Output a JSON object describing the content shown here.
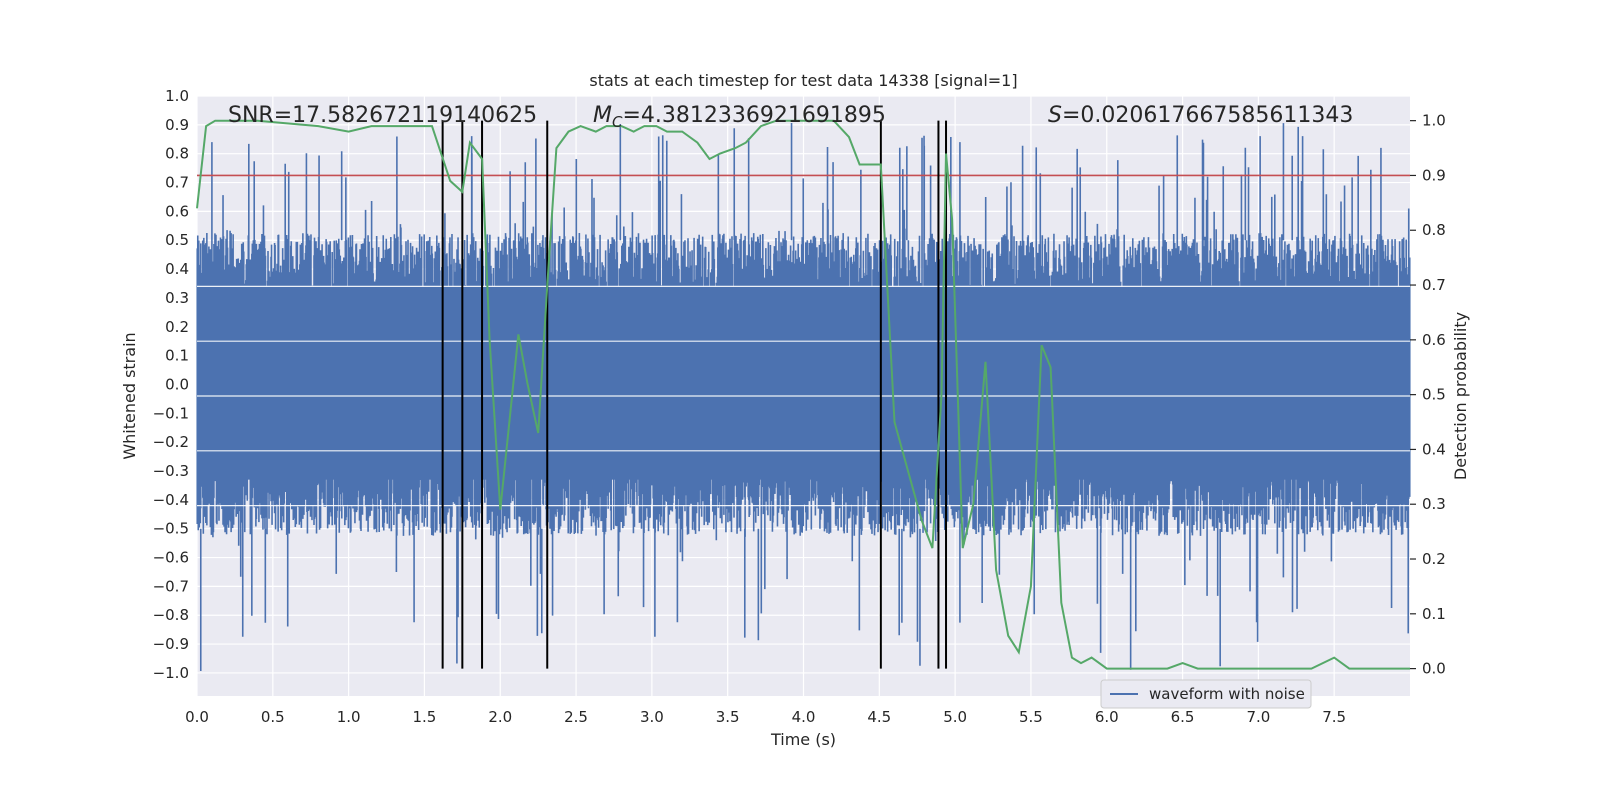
{
  "chart_data": {
    "type": "line",
    "title": "stats at each timestep for test data 14338 [signal=1]",
    "xlabel": "Time (s)",
    "ylabel_left": "Whitened strain",
    "ylabel_right": "Detection probability",
    "xlim": [
      0.0,
      8.0
    ],
    "ylim_left": [
      -1.08,
      1.0
    ],
    "ylim_right": [
      -0.05,
      1.045
    ],
    "xticks": [
      "0.0",
      "0.5",
      "1.0",
      "1.5",
      "2.0",
      "2.5",
      "3.0",
      "3.5",
      "4.0",
      "4.5",
      "5.0",
      "5.5",
      "6.0",
      "6.5",
      "7.0",
      "7.5"
    ],
    "yticks_left": [
      "1.0",
      "0.9",
      "0.8",
      "0.7",
      "0.6",
      "0.5",
      "0.4",
      "0.3",
      "0.2",
      "0.1",
      "0.0",
      "−0.1",
      "−0.2",
      "−0.3",
      "−0.4",
      "−0.5",
      "−0.6",
      "−0.7",
      "−0.8",
      "−0.9",
      "−1.0"
    ],
    "yticks_right": [
      "1.0",
      "0.9",
      "0.8",
      "0.7",
      "0.6",
      "0.5",
      "0.4",
      "0.3",
      "0.2",
      "0.1",
      "0.0"
    ],
    "annotations": {
      "snr": "SNR=17.582672119140625",
      "mc_symbol": "M",
      "mc_sub": "C",
      "mc_value": "=4.3812336921691895",
      "s_symbol": "S",
      "s_value": "=0.020617667585611343"
    },
    "legend": {
      "label": "waveform with noise",
      "placement": "lower-right"
    },
    "threshold": 0.9,
    "event_lines": [
      1.62,
      1.75,
      1.88,
      2.31,
      4.51,
      4.89,
      4.94
    ],
    "series": [
      {
        "name": "waveform with noise",
        "axis": "left",
        "style": "noise-band",
        "core_range": [
          -0.5,
          0.5
        ],
        "peak_max": 0.91,
        "trough_min": -1.0
      },
      {
        "name": "detection probability",
        "axis": "right",
        "x": [
          0.0,
          0.06,
          0.12,
          0.4,
          0.8,
          1.0,
          1.15,
          1.3,
          1.45,
          1.55,
          1.67,
          1.75,
          1.8,
          1.88,
          1.93,
          2.0,
          2.12,
          2.18,
          2.25,
          2.31,
          2.37,
          2.45,
          2.53,
          2.63,
          2.7,
          2.8,
          2.88,
          2.95,
          3.03,
          3.1,
          3.2,
          3.3,
          3.38,
          3.45,
          3.55,
          3.62,
          3.72,
          3.82,
          3.95,
          4.05,
          4.2,
          4.3,
          4.37,
          4.45,
          4.51,
          4.6,
          4.68,
          4.78,
          4.85,
          4.91,
          4.94,
          4.98,
          5.05,
          5.12,
          5.2,
          5.27,
          5.35,
          5.42,
          5.5,
          5.57,
          5.63,
          5.7,
          5.77,
          5.83,
          5.9,
          6.0,
          6.2,
          6.4,
          6.5,
          6.6,
          6.8,
          7.0,
          7.2,
          7.35,
          7.5,
          7.6,
          7.7,
          8.0
        ],
        "y": [
          0.84,
          0.99,
          1.0,
          1.0,
          0.99,
          0.98,
          0.99,
          0.99,
          0.99,
          0.99,
          0.89,
          0.87,
          0.96,
          0.93,
          0.6,
          0.29,
          0.61,
          0.52,
          0.43,
          0.7,
          0.95,
          0.98,
          0.99,
          0.98,
          0.99,
          0.99,
          0.98,
          0.99,
          0.99,
          0.98,
          0.98,
          0.96,
          0.93,
          0.94,
          0.95,
          0.96,
          0.99,
          1.0,
          1.0,
          1.0,
          1.0,
          0.97,
          0.92,
          0.92,
          0.92,
          0.45,
          0.37,
          0.27,
          0.22,
          0.5,
          0.94,
          0.82,
          0.22,
          0.3,
          0.56,
          0.18,
          0.06,
          0.03,
          0.15,
          0.59,
          0.55,
          0.12,
          0.02,
          0.01,
          0.02,
          0.0,
          0.0,
          0.0,
          0.01,
          0.0,
          0.0,
          0.0,
          0.0,
          0.0,
          0.02,
          0.0,
          0.0,
          0.0
        ]
      }
    ],
    "colors": {
      "background": "#EAEAF2",
      "grid": "#FFFFFF",
      "waveform": "#4C72B0",
      "probability": "#55A868",
      "threshold": "#C44E52",
      "event": "#000000"
    }
  }
}
